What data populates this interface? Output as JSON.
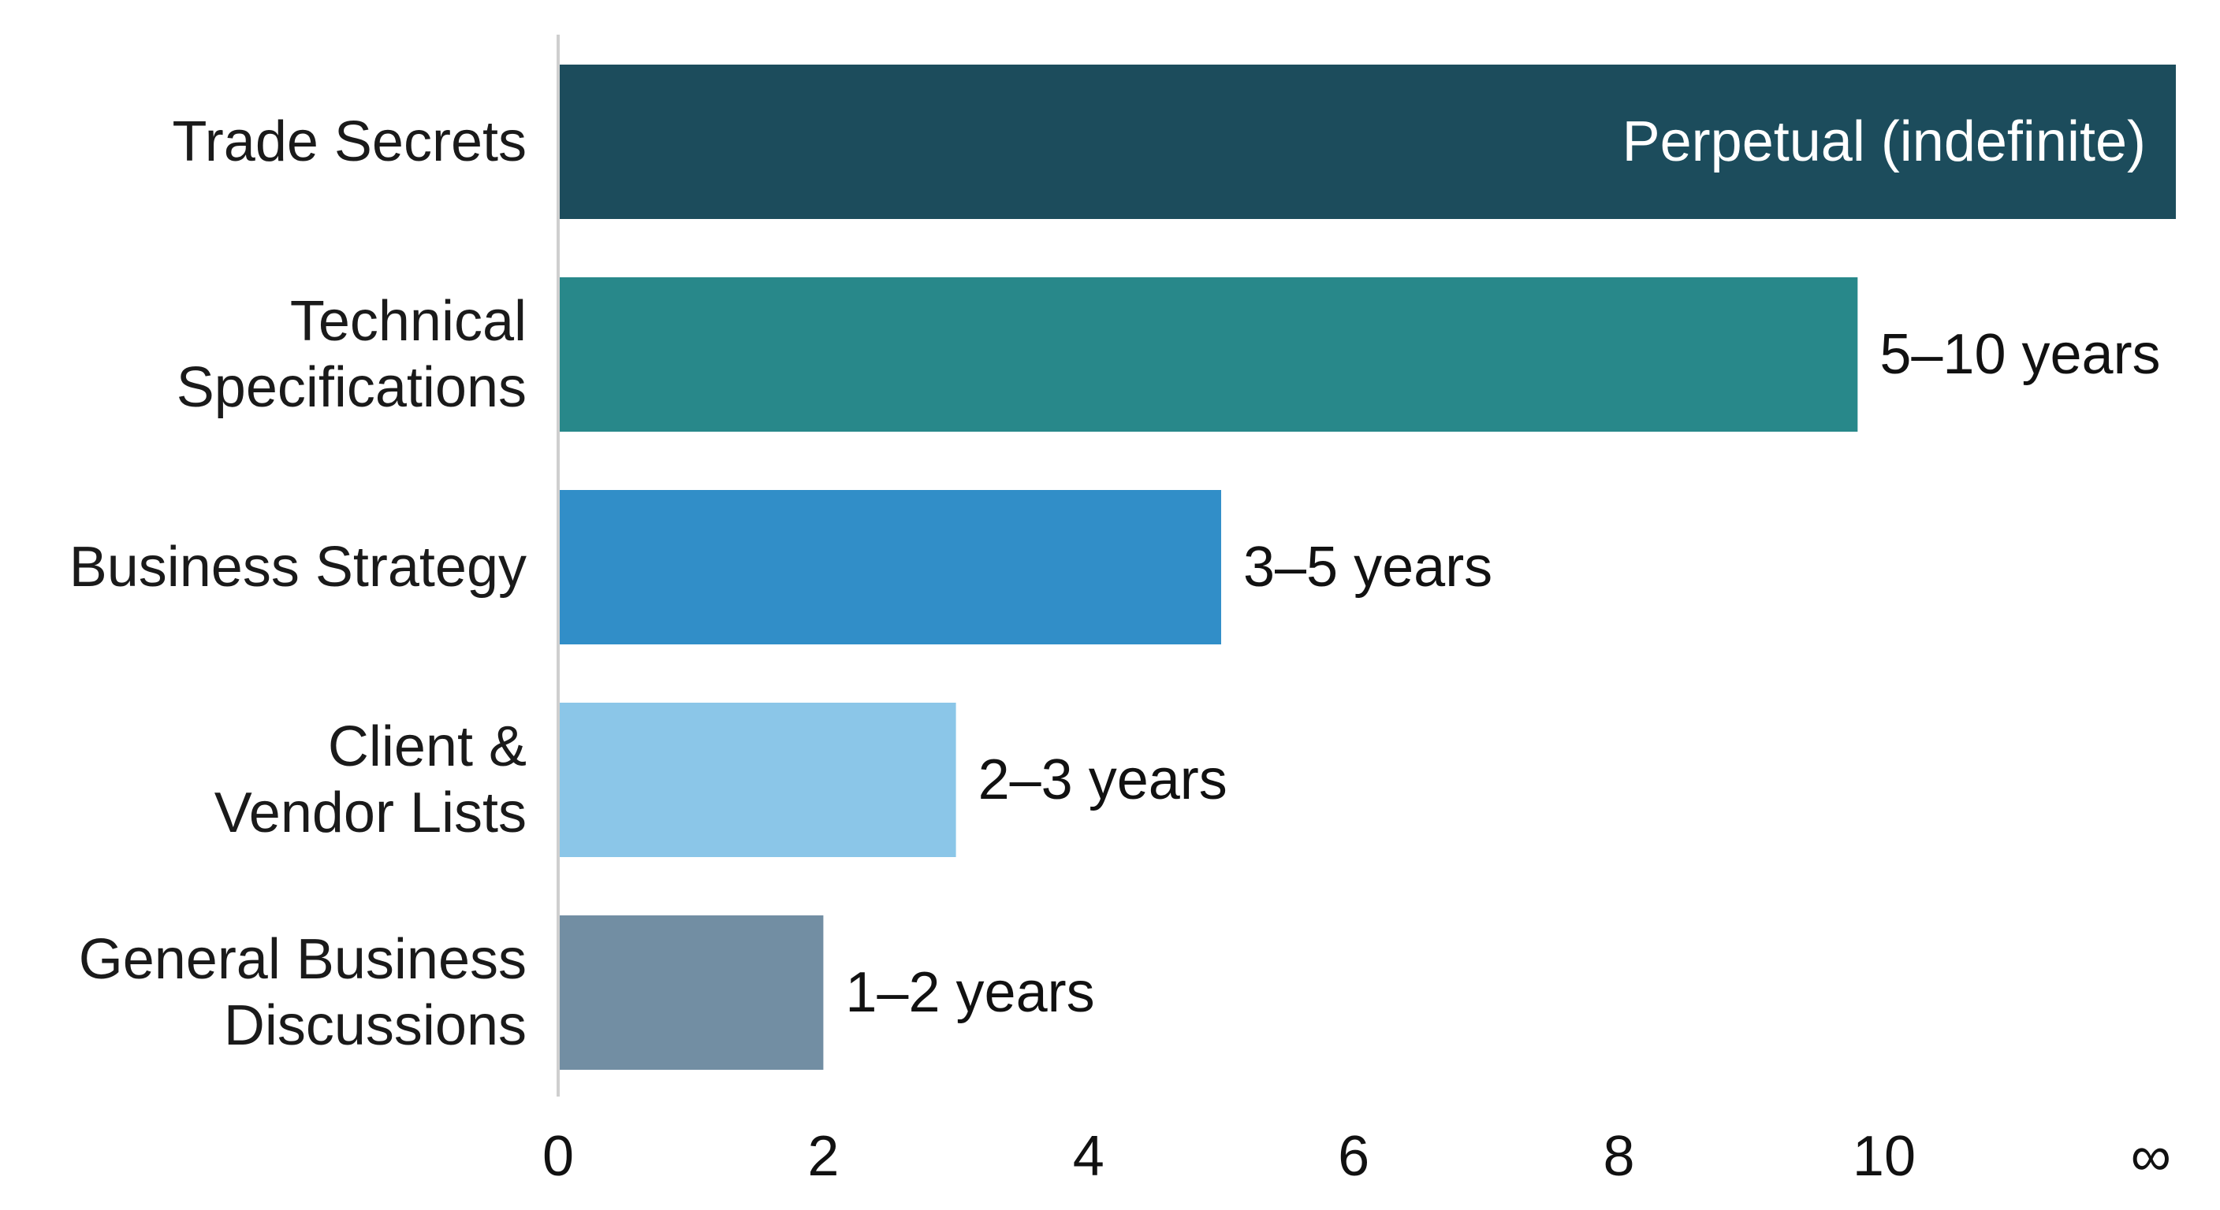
{
  "chart_data": {
    "type": "bar",
    "orientation": "horizontal",
    "title": "",
    "xlabel": "",
    "ylabel": "",
    "categories": [
      "Trade Secrets",
      "Technical Specifications",
      "Business Strategy",
      "Client & Vendor Lists",
      "General Business Discussions"
    ],
    "category_lines": [
      [
        "Trade Secrets"
      ],
      [
        "Technical",
        "Specifications"
      ],
      [
        "Business Strategy"
      ],
      [
        "Client &",
        "Vendor Lists"
      ],
      [
        "General Business",
        "Discussions"
      ]
    ],
    "values": [
      12.2,
      9.8,
      5,
      3,
      2
    ],
    "value_note": "Trade Secrets bar extends to the infinity end of the axis",
    "data_labels": [
      "Perpetual (indefinite)",
      "5–10 years",
      "3–5 years",
      "2–3 years",
      "1–2 years"
    ],
    "data_label_placement": [
      "inside",
      "outside",
      "outside",
      "outside",
      "outside"
    ],
    "colors": [
      "#1c4c5c",
      "#28888a",
      "#318ec8",
      "#8bc6e8",
      "#728ea3"
    ],
    "label_colors": [
      "#ffffff",
      "#111111",
      "#111111",
      "#111111",
      "#111111"
    ],
    "xlim": [
      0,
      12.2
    ],
    "xticks": [
      0,
      2,
      4,
      6,
      8,
      10,
      12.2
    ],
    "xtick_labels": [
      "0",
      "2",
      "4",
      "6",
      "8",
      "10",
      "∞"
    ],
    "grid": false,
    "legend": false,
    "axis_color": "#cfcfcf"
  }
}
